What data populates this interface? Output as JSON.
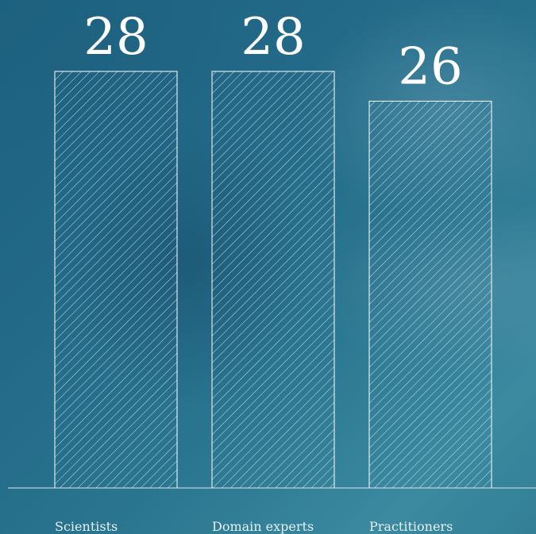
{
  "chart_data": {
    "type": "bar",
    "categories": [
      "Scientists",
      "Domain experts",
      "Practitioners"
    ],
    "values": [
      28,
      28,
      26
    ],
    "title": "",
    "xlabel": "",
    "ylabel": "",
    "ylim": [
      0,
      28
    ],
    "grid": false,
    "legend": "none",
    "bar_style": "hatched-outline",
    "colors": {
      "bar_stroke": "#ffffff",
      "hatch": "#ffffff",
      "baseline": "#d8e6ec",
      "text": "#ffffff"
    }
  }
}
